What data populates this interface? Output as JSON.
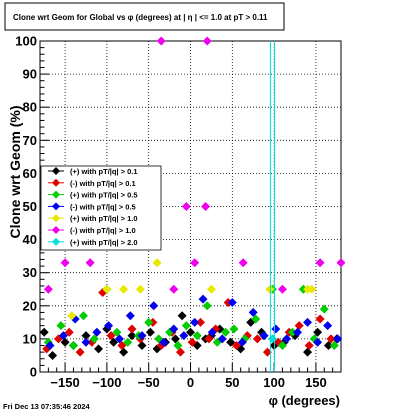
{
  "chart_data": {
    "type": "scatter",
    "title": "Clone wrt Geom for Global vs φ (degrees) at | η | <= 1.0 at pT > 0.11",
    "xlabel": "φ (degrees)",
    "ylabel": "Clone wrt Geom (%)",
    "xlim": [
      -180,
      180
    ],
    "ylim": [
      0,
      100
    ],
    "x_ticks": [
      -150,
      -100,
      -50,
      0,
      50,
      100,
      150
    ],
    "y_ticks": [
      0,
      10,
      20,
      30,
      40,
      50,
      60,
      70,
      80,
      90,
      100
    ],
    "grid": true,
    "legend_position": "center-left",
    "series": [
      {
        "name": "(+) with pT/|q| > 0.1",
        "color": "#000000",
        "x": [
          -175,
          -165,
          -150,
          -140,
          -125,
          -110,
          -100,
          -92,
          -80,
          -70,
          -58,
          -48,
          -40,
          -30,
          -18,
          -10,
          0,
          8,
          18,
          25,
          35,
          48,
          60,
          72,
          85,
          100,
          112,
          125,
          140,
          152,
          165,
          175
        ],
        "y": [
          12,
          5,
          9,
          8,
          11,
          7,
          13,
          9,
          6,
          11,
          8,
          12,
          7,
          9,
          10,
          17,
          12,
          8,
          10,
          11,
          13,
          9,
          7,
          15,
          12,
          8,
          9,
          11,
          6,
          12,
          8,
          10
        ]
      },
      {
        "name": "(-) with pT/|q| > 0.1",
        "color": "#e00000",
        "x": [
          -172,
          -158,
          -145,
          -132,
          -118,
          -105,
          -95,
          -82,
          -70,
          -60,
          -45,
          -35,
          -22,
          -12,
          2,
          12,
          22,
          30,
          45,
          55,
          68,
          80,
          92,
          105,
          118,
          130,
          142,
          155,
          168
        ],
        "y": [
          7,
          10,
          12,
          6,
          9,
          24,
          11,
          8,
          13,
          10,
          15,
          8,
          12,
          6,
          9,
          15,
          10,
          13,
          21,
          8,
          11,
          10,
          6,
          9,
          12,
          14,
          8,
          16,
          10
        ]
      },
      {
        "name": "(+) with pT/|q| > 0.5",
        "color": "#00cc00",
        "x": [
          -170,
          -155,
          -140,
          -128,
          -115,
          -100,
          -88,
          -75,
          -62,
          -50,
          -38,
          -25,
          -15,
          -5,
          8,
          20,
          32,
          42,
          52,
          65,
          78,
          88,
          98,
          110,
          122,
          135,
          148,
          160,
          172
        ],
        "y": [
          9,
          14,
          8,
          17,
          10,
          25,
          12,
          9,
          11,
          15,
          10,
          12,
          8,
          14,
          11,
          20,
          9,
          12,
          13,
          10,
          16,
          11,
          25,
          8,
          12,
          25,
          10,
          19,
          8
        ]
      },
      {
        "name": "(-) with pT/|q| > 0.5",
        "color": "#0000ee",
        "x": [
          -168,
          -152,
          -138,
          -125,
          -112,
          -98,
          -85,
          -72,
          -58,
          -44,
          -32,
          -20,
          -8,
          5,
          15,
          26,
          38,
          50,
          62,
          75,
          88,
          102,
          115,
          128,
          140,
          152,
          164,
          176
        ],
        "y": [
          8,
          11,
          16,
          9,
          12,
          14,
          10,
          17,
          11,
          20,
          9,
          13,
          11,
          15,
          22,
          12,
          10,
          21,
          9,
          18,
          11,
          13,
          10,
          12,
          15,
          9,
          14,
          10
        ]
      },
      {
        "name": "(+) with pT/|q| > 1.0",
        "color": "#e8e800",
        "x": [
          -142,
          -100,
          -80,
          -60,
          -40,
          25,
          95,
          140,
          145
        ],
        "y": [
          17,
          25,
          25,
          25,
          33,
          25,
          25,
          25,
          25
        ]
      },
      {
        "name": "(-) with pT/|q| > 1.0",
        "color": "#ee00ee",
        "x": [
          -170,
          -150,
          -120,
          -35,
          -20,
          -5,
          5,
          18,
          20,
          63,
          110,
          155,
          180
        ],
        "y": [
          25,
          33,
          33,
          100,
          25,
          50,
          33,
          50,
          100,
          33,
          25,
          33,
          33
        ]
      },
      {
        "name": "(+) with pT/|q| > 2.0",
        "color": "#00dddd",
        "x": [
          98
        ],
        "y": [
          10
        ]
      }
    ]
  },
  "footer": {
    "timestamp": "Fri Dec 13 07:35:46 2024"
  }
}
